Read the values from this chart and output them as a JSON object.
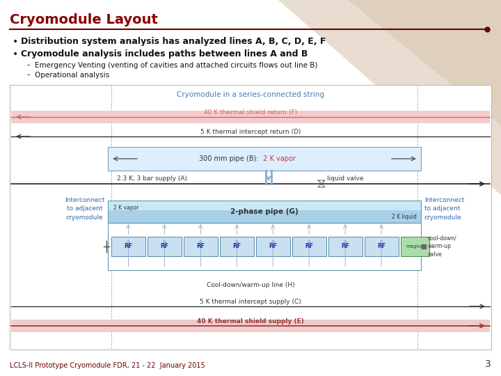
{
  "title": "Cryomodule Layout",
  "title_color": "#8B0000",
  "bg_color": "#FFFFFF",
  "bullet1": "Distribution system analysis has analyzed lines A, B, C, D, E, F",
  "bullet2": "Cryomodule analysis includes paths between lines A and B",
  "sub1": "Emergency Venting (venting of cavities and attached circuits flows out line B)",
  "sub2": "Operational analysis",
  "footer": "LCLS-II Prototype Cryomodule FDR, 21 - 22  January 2015",
  "page_num": "3",
  "diagram_title": "Cryomodule in a series-connected string",
  "line_F": "40 K thermal shield return (F)",
  "line_D": "5 K thermal intercept return (D)",
  "line_B_black": "300 mm pipe (B): ",
  "line_B_red": " 2 K vapor",
  "line_A": "2.3 K, 3 bar supply (A)",
  "line_G": "2-phase pipe (G)",
  "line_H": "Cool-down/warm-up line (H)",
  "line_C": "5 K thermal intercept supply (C)",
  "line_E": "40 K thermal shield supply (E)",
  "label_left": "Interconnect\nto adjacent\ncryomodule",
  "label_right": "Interconnect\nto adjacent\ncryomodule",
  "label_valve": "cool-down/\nwarm-up\nvalve",
  "label_liquid": "liquid valve",
  "label_2Kvapor": "2 K vapor",
  "label_2Kliquid": "2 K liquid",
  "maroon": "#6B0000",
  "line_F_color": "#CC6666",
  "line_F_bg": "#F5CCCC",
  "line_D_color": "#333333",
  "line_B_bg": "#DDEEFF",
  "line_A_color": "#333333",
  "line_G_bg": "#BBDDEE",
  "line_G_bg2": "#99CCDD",
  "line_C_color": "#333333",
  "line_E_color": "#993333",
  "line_E_bg": "#F0CCCC",
  "rf_color": "#C8E0F0",
  "magnet_color": "#AADDAA",
  "diagram_title_color": "#4477BB",
  "interconnect_color": "#3366AA",
  "beige1": "#E8DDD0",
  "beige2": "#D8C8B0"
}
